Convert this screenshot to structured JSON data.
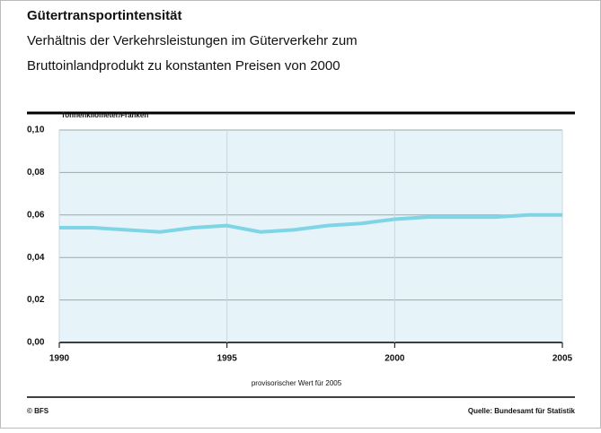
{
  "chart_data": {
    "type": "line",
    "title": "Gütertransportintensität",
    "subtitle": [
      "Verhältnis der Verkehrsleistungen im Güterverkehr zum",
      "Bruttoinlandprodukt zu konstanten Preisen von 2000"
    ],
    "y_label": "Tonnenkilometer/Franken",
    "note": "provisorischer Wert für 2005",
    "copyright": "© BFS",
    "source": "Quelle: Bundesamt für Statistik",
    "x": [
      1990,
      1991,
      1992,
      1993,
      1994,
      1995,
      1996,
      1997,
      1998,
      1999,
      2000,
      2001,
      2002,
      2003,
      2004,
      2005
    ],
    "series": [
      {
        "name": "Gütertransportintensität",
        "color": "#7fd4e6",
        "values": [
          0.054,
          0.054,
          0.053,
          0.052,
          0.054,
          0.055,
          0.052,
          0.053,
          0.055,
          0.056,
          0.058,
          0.059,
          0.059,
          0.059,
          0.06,
          0.06
        ]
      }
    ],
    "xlim": [
      1990,
      2005
    ],
    "xticks": [
      1990,
      1995,
      2000,
      2005
    ],
    "ylim": [
      0,
      0.1
    ],
    "yticks": [
      {
        "value": 0,
        "label": "0,00"
      },
      {
        "value": 0.02,
        "label": "0,02"
      },
      {
        "value": 0.04,
        "label": "0,04"
      },
      {
        "value": 0.06,
        "label": "0,06"
      },
      {
        "value": 0.08,
        "label": "0,08"
      },
      {
        "value": 0.1,
        "label": "0,10"
      }
    ],
    "grid": true
  }
}
